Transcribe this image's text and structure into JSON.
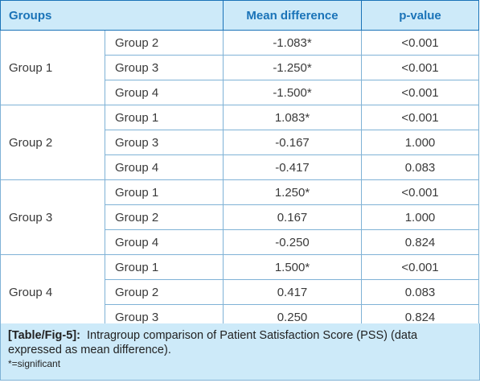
{
  "table": {
    "headers": [
      "Groups",
      "Mean difference",
      "p-value"
    ],
    "blocks": [
      {
        "group": "Group 1",
        "rows": [
          {
            "compare": "Group 2",
            "mean_diff": "-1.083*",
            "p": "<0.001"
          },
          {
            "compare": "Group 3",
            "mean_diff": "-1.250*",
            "p": "<0.001"
          },
          {
            "compare": "Group 4",
            "mean_diff": "-1.500*",
            "p": "<0.001"
          }
        ]
      },
      {
        "group": "Group 2",
        "rows": [
          {
            "compare": "Group 1",
            "mean_diff": "1.083*",
            "p": "<0.001"
          },
          {
            "compare": "Group 3",
            "mean_diff": "-0.167",
            "p": "1.000"
          },
          {
            "compare": "Group 4",
            "mean_diff": "-0.417",
            "p": "0.083"
          }
        ]
      },
      {
        "group": "Group 3",
        "rows": [
          {
            "compare": "Group 1",
            "mean_diff": "1.250*",
            "p": "<0.001"
          },
          {
            "compare": "Group 2",
            "mean_diff": "0.167",
            "p": "1.000"
          },
          {
            "compare": "Group 4",
            "mean_diff": "-0.250",
            "p": "0.824"
          }
        ]
      },
      {
        "group": "Group 4",
        "rows": [
          {
            "compare": "Group 1",
            "mean_diff": "1.500*",
            "p": "<0.001"
          },
          {
            "compare": "Group 2",
            "mean_diff": "0.417",
            "p": "0.083"
          },
          {
            "compare": "Group 3",
            "mean_diff": "0.250",
            "p": "0.824"
          }
        ]
      }
    ]
  },
  "caption": {
    "label": "[Table/Fig-5]:",
    "text": "Intragroup comparison of Patient Satisfaction Score (PSS) (data expressed as mean difference).",
    "note": "*=significant"
  },
  "colors": {
    "header_bg": "#cdeaf9",
    "header_text": "#1a73b8",
    "border": "#7fb2d6",
    "caption_bg": "#cdeaf9"
  }
}
